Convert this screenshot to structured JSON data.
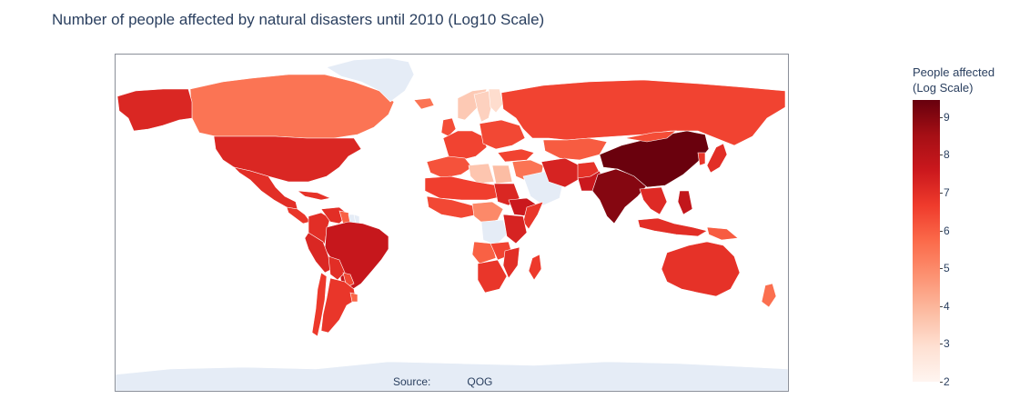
{
  "title": "Number of people affected by natural disasters until 2010 (Log10 Scale)",
  "source_label": "Source:",
  "source_value": "QOG",
  "colorbar": {
    "title_line1": "People affected",
    "title_line2": "(Log Scale)",
    "min": 2,
    "max": 9.45,
    "ticks": [
      "2",
      "3",
      "4",
      "5",
      "6",
      "7",
      "8",
      "9"
    ],
    "colorscale": [
      "#fff5f0",
      "#fee0d2",
      "#fcbba1",
      "#fc9272",
      "#fb6a4a",
      "#ef3b2c",
      "#cb181d",
      "#a50f15",
      "#67000d"
    ]
  },
  "map": {
    "projection": "equirectangular",
    "no_data_color": "#e5ecf6",
    "border_color": "#ffffff",
    "regions": [
      {
        "name": "Canada",
        "value": 5.5
      },
      {
        "name": "Alaska (United States)",
        "value": 7.2
      },
      {
        "name": "United States",
        "value": 7.2
      },
      {
        "name": "Greenland",
        "value": null
      },
      {
        "name": "Mexico",
        "value": 7.0
      },
      {
        "name": "Central America",
        "value": 6.8
      },
      {
        "name": "Cuba",
        "value": 6.9
      },
      {
        "name": "Colombia",
        "value": 7.0
      },
      {
        "name": "Venezuela",
        "value": 7.0
      },
      {
        "name": "Guyana",
        "value": 5.9
      },
      {
        "name": "Suriname",
        "value": null
      },
      {
        "name": "French Guiana",
        "value": null
      },
      {
        "name": "Brazil",
        "value": 7.7
      },
      {
        "name": "Peru",
        "value": 7.2
      },
      {
        "name": "Bolivia",
        "value": 7.0
      },
      {
        "name": "Paraguay",
        "value": 6.4
      },
      {
        "name": "Argentina",
        "value": 6.8
      },
      {
        "name": "Chile",
        "value": 6.7
      },
      {
        "name": "Uruguay",
        "value": 5.8
      },
      {
        "name": "Norway",
        "value": 3.5
      },
      {
        "name": "Sweden",
        "value": 3.3
      },
      {
        "name": "Finland",
        "value": 3.0
      },
      {
        "name": "Iceland",
        "value": 5.5
      },
      {
        "name": "United Kingdom",
        "value": 6.3
      },
      {
        "name": "Western Europe",
        "value": 6.5
      },
      {
        "name": "Eastern Europe",
        "value": 6.4
      },
      {
        "name": "Russia",
        "value": 6.5
      },
      {
        "name": "Kazakhstan",
        "value": 6.0
      },
      {
        "name": "Turkey",
        "value": 6.5
      },
      {
        "name": "Middle East",
        "value": 5.5
      },
      {
        "name": "Saudi Arabia",
        "value": null
      },
      {
        "name": "Iran",
        "value": 7.3
      },
      {
        "name": "Afghanistan",
        "value": 6.9
      },
      {
        "name": "Pakistan",
        "value": 7.6
      },
      {
        "name": "India",
        "value": 9.0
      },
      {
        "name": "China",
        "value": 9.4
      },
      {
        "name": "Mongolia",
        "value": 6.3
      },
      {
        "name": "Japan",
        "value": 7.0
      },
      {
        "name": "Korea",
        "value": 6.8
      },
      {
        "name": "Southeast Asia",
        "value": 7.1
      },
      {
        "name": "Philippines",
        "value": 7.8
      },
      {
        "name": "Indonesia",
        "value": 7.0
      },
      {
        "name": "Papua New Guinea",
        "value": 6.0
      },
      {
        "name": "Australia",
        "value": 6.9
      },
      {
        "name": "New Zealand",
        "value": 5.6
      },
      {
        "name": "Northwest Africa",
        "value": 6.2
      },
      {
        "name": "Libya",
        "value": 3.6
      },
      {
        "name": "Egypt",
        "value": 3.8
      },
      {
        "name": "Sahel",
        "value": 6.6
      },
      {
        "name": "Sudan",
        "value": 7.2
      },
      {
        "name": "Ethiopia",
        "value": 7.6
      },
      {
        "name": "Somalia",
        "value": 6.8
      },
      {
        "name": "West Africa",
        "value": 6.4
      },
      {
        "name": "Central Africa",
        "value": 5.0
      },
      {
        "name": "Congo basin",
        "value": null
      },
      {
        "name": "East Africa",
        "value": 7.3
      },
      {
        "name": "Angola",
        "value": 5.9
      },
      {
        "name": "Zambia",
        "value": 6.5
      },
      {
        "name": "Mozambique",
        "value": 7.0
      },
      {
        "name": "Southern Africa",
        "value": 6.8
      },
      {
        "name": "Madagascar",
        "value": 6.7
      },
      {
        "name": "Antarctica",
        "value": null
      }
    ]
  }
}
